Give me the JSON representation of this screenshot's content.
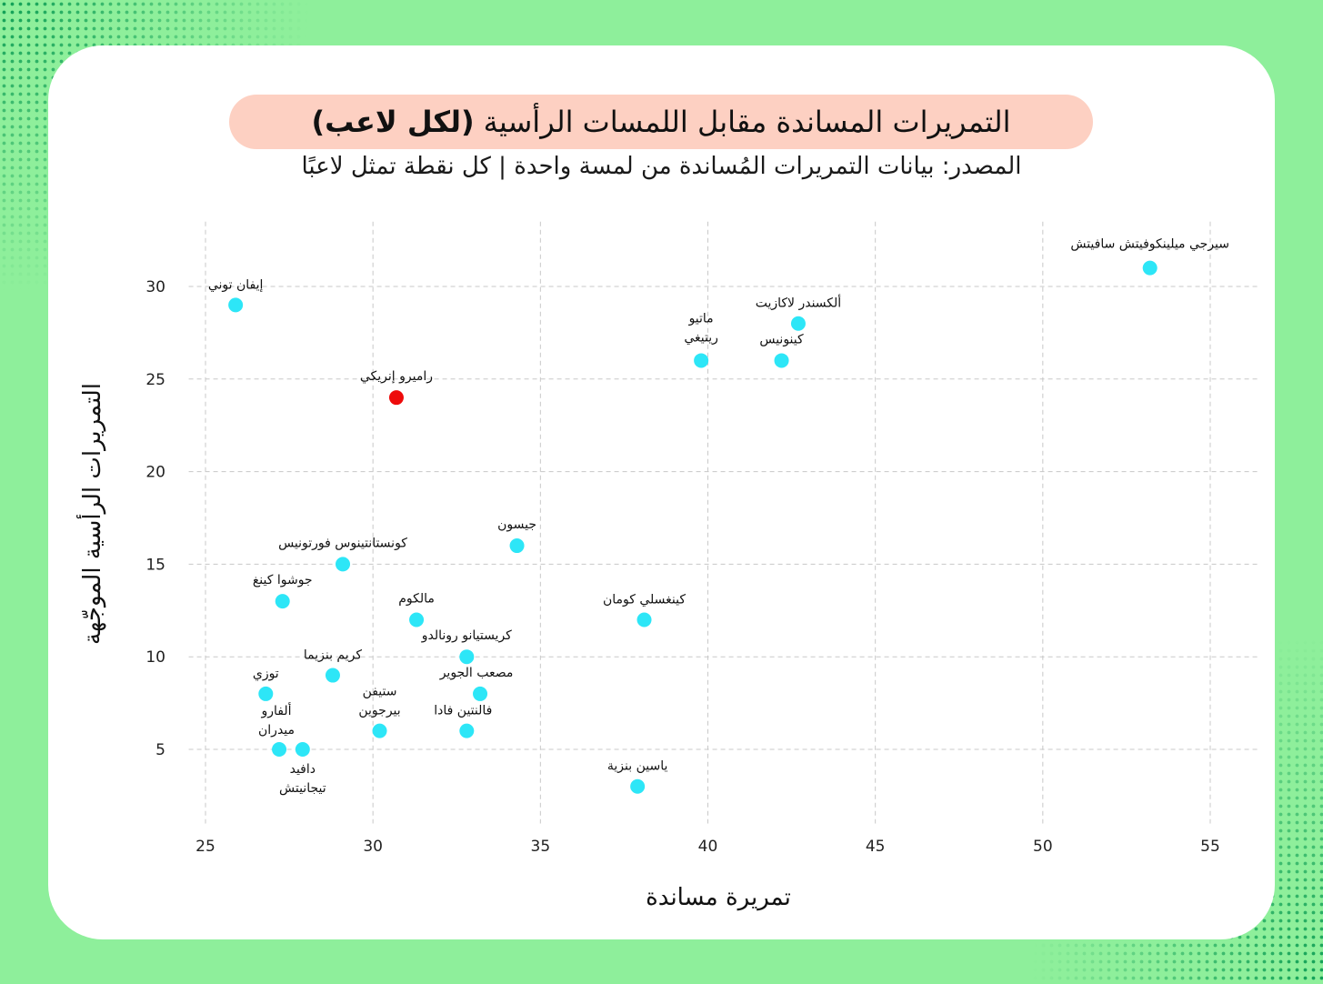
{
  "colors": {
    "background": "#8eef9b",
    "dots": "#0f9e55",
    "card": "#ffffff",
    "title_pill": "#fdd0c2",
    "point": "#2de6f7",
    "highlight": "#ee0b0b",
    "grid": "#c8c8c8"
  },
  "title": {
    "main": "التمريرات المساندة مقابل اللمسات الرأسية",
    "bold": "(لكل لاعب)"
  },
  "subtitle": "المصدر: بيانات التمريرات المُساندة من لمسة واحدة | كل نقطة تمثل لاعبًا",
  "chart_data": {
    "type": "scatter",
    "xlabel": "تمريرة مساندة",
    "ylabel": "التمريرات الرأسية الموجّهة",
    "xlim": [
      24.5,
      56.5
    ],
    "ylim": [
      1.0,
      33.5
    ],
    "xticks": [
      25,
      30,
      35,
      40,
      45,
      50,
      55
    ],
    "yticks": [
      5,
      10,
      15,
      20,
      25,
      30
    ],
    "grid": true,
    "points": [
      {
        "label": "سيرجي ميلينكوفيتش سافيتش",
        "x": 53.2,
        "y": 31,
        "highlight": false
      },
      {
        "label": "إيفان توني",
        "x": 25.9,
        "y": 29,
        "highlight": false
      },
      {
        "label": "ألكسندر لاكازيت",
        "x": 42.7,
        "y": 28,
        "highlight": false
      },
      {
        "label": "ماتيو ريتيغي",
        "x": 39.8,
        "y": 26,
        "highlight": false
      },
      {
        "label": "كينونيس",
        "x": 42.2,
        "y": 26,
        "highlight": false
      },
      {
        "label": "راميرو إنريكي",
        "x": 30.7,
        "y": 24,
        "highlight": true
      },
      {
        "label": "جيسون",
        "x": 34.3,
        "y": 16,
        "highlight": false
      },
      {
        "label": "كونستانتينوس فورتونيس",
        "x": 29.1,
        "y": 15,
        "highlight": false
      },
      {
        "label": "جوشوا كينغ",
        "x": 27.3,
        "y": 13,
        "highlight": false
      },
      {
        "label": "مالكوم",
        "x": 31.3,
        "y": 12,
        "highlight": false
      },
      {
        "label": "كينغسلي كومان",
        "x": 38.1,
        "y": 12,
        "highlight": false
      },
      {
        "label": "كريستيانو رونالدو",
        "x": 32.8,
        "y": 10,
        "highlight": false
      },
      {
        "label": "كريم بنزيما",
        "x": 28.8,
        "y": 9,
        "highlight": false
      },
      {
        "label": "توزي",
        "x": 26.8,
        "y": 8,
        "highlight": false
      },
      {
        "label": "مصعب الجوير",
        "x": 33.2,
        "y": 8,
        "highlight": false
      },
      {
        "label": "ستيفن بيرجوين",
        "x": 30.2,
        "y": 6,
        "highlight": false
      },
      {
        "label": "فالنتين فادا",
        "x": 32.8,
        "y": 6,
        "highlight": false
      },
      {
        "label": "ألفارو ميدران",
        "x": 27.2,
        "y": 5,
        "highlight": false
      },
      {
        "label": "دافيد تيجانيتش",
        "x": 27.9,
        "y": 5,
        "highlight": false
      },
      {
        "label": "ياسين بنزية",
        "x": 37.9,
        "y": 3,
        "highlight": false
      }
    ]
  }
}
